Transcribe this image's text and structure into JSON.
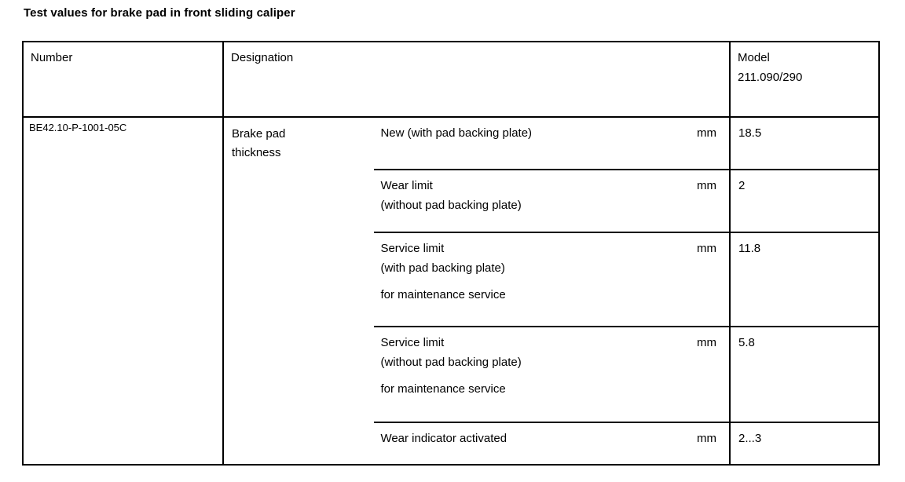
{
  "page_title": "Test values for brake pad in front sliding caliper",
  "colors": {
    "text": "#000000",
    "border": "#000000",
    "background": "#ffffff"
  },
  "table": {
    "headers": {
      "number": "Number",
      "designation": "Designation",
      "model_line1": "Model",
      "model_line2": "211.090/290"
    },
    "row": {
      "number": "BE42.10-P-1001-05C",
      "designation": "Brake pad thickness",
      "specs": [
        {
          "line1": "New (with pad backing plate)",
          "line2": "",
          "note": "",
          "unit": "mm",
          "value": "18.5"
        },
        {
          "line1": "Wear limit",
          "line2": "(without pad backing plate)",
          "note": "",
          "unit": "mm",
          "value": "2"
        },
        {
          "line1": "Service limit",
          "line2": "(with pad backing plate)",
          "note": "for maintenance service",
          "unit": "mm",
          "value": "11.8"
        },
        {
          "line1": "Service limit",
          "line2": "(without pad backing plate)",
          "note": "for maintenance service",
          "unit": "mm",
          "value": "5.8"
        },
        {
          "line1": "Wear indicator activated",
          "line2": "",
          "note": "",
          "unit": "mm",
          "value": "2...3"
        }
      ]
    }
  }
}
